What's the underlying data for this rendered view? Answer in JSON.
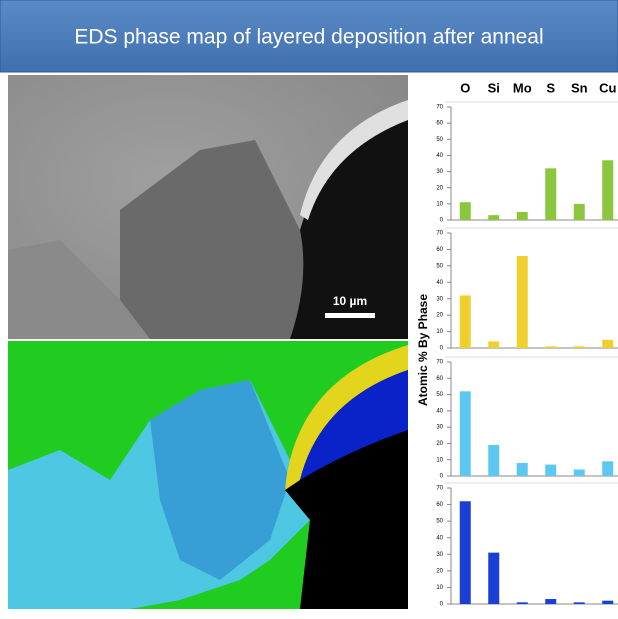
{
  "title": "EDS phase map of layered deposition after anneal",
  "scale_bar": "10 µm",
  "y_label": "Atomic % By Phase",
  "chart_data": [
    {
      "type": "bar",
      "categories": [
        "O",
        "Si",
        "Mo",
        "S",
        "Sn",
        "Cu"
      ],
      "values": [
        11,
        3,
        5,
        32,
        10,
        37
      ],
      "color": "#8cc63f",
      "ylim": [
        0,
        70
      ],
      "yticks": [
        0,
        10,
        20,
        30,
        40,
        50,
        60,
        70
      ]
    },
    {
      "type": "bar",
      "values": [
        32,
        4,
        56,
        1,
        1,
        5
      ],
      "color": "#efd02f",
      "ylim": [
        0,
        70
      ],
      "yticks": [
        0,
        10,
        20,
        30,
        40,
        50,
        60,
        70
      ]
    },
    {
      "type": "bar",
      "values": [
        52,
        19,
        8,
        7,
        4,
        9
      ],
      "color": "#5cc8f2",
      "ylim": [
        0,
        70
      ],
      "yticks": [
        0,
        10,
        20,
        30,
        40,
        50,
        60,
        70
      ]
    },
    {
      "type": "bar",
      "values": [
        62,
        31,
        1,
        3,
        1,
        2
      ],
      "color": "#1a3fd6",
      "ylim": [
        0,
        70
      ],
      "yticks": [
        0,
        10,
        20,
        30,
        40,
        50,
        60,
        70
      ]
    }
  ]
}
